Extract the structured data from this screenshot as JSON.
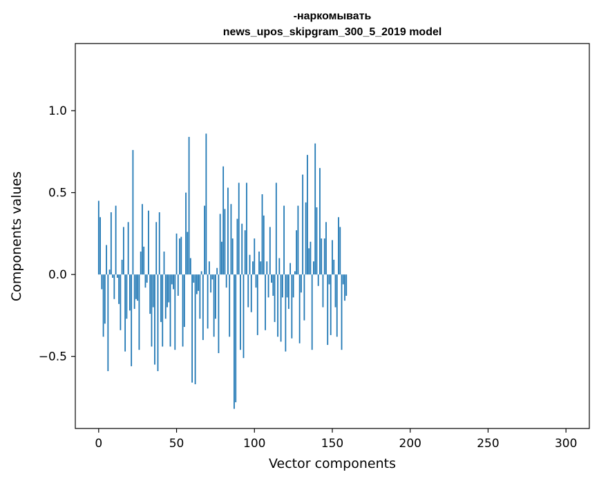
{
  "chart_data": {
    "type": "bar",
    "title_line1": "-наркомывать",
    "title_line2": "news_upos_skipgram_300_5_2019 model",
    "xlabel": "Vector components",
    "ylabel": "Components values",
    "xlim": [
      -15,
      315
    ],
    "ylim": [
      -0.94,
      1.41
    ],
    "xticks": [
      0,
      50,
      100,
      150,
      200,
      250,
      300
    ],
    "xtick_labels": [
      "0",
      "50",
      "100",
      "150",
      "200",
      "250",
      "300"
    ],
    "yticks": [
      -0.5,
      0.0,
      0.5,
      1.0
    ],
    "ytick_labels": [
      "−0.5",
      "0.0",
      "0.5",
      "1.0"
    ],
    "bar_color": "#1f77b4",
    "grid": false,
    "values": [
      0.45,
      0.35,
      -0.09,
      -0.38,
      -0.3,
      0.18,
      -0.59,
      0.03,
      0.38,
      -0.02,
      -0.15,
      0.42,
      -0.02,
      -0.18,
      -0.34,
      0.09,
      0.29,
      -0.47,
      -0.27,
      0.32,
      -0.22,
      -0.56,
      0.76,
      -0.21,
      -0.15,
      -0.16,
      -0.46,
      0.14,
      0.43,
      0.17,
      -0.08,
      -0.05,
      0.39,
      -0.24,
      -0.44,
      -0.2,
      -0.55,
      0.32,
      -0.59,
      0.38,
      -0.29,
      -0.44,
      0.14,
      -0.27,
      -0.2,
      -0.17,
      -0.44,
      -0.06,
      -0.09,
      -0.46,
      0.25,
      -0.13,
      0.22,
      0.23,
      -0.44,
      -0.32,
      0.5,
      0.26,
      0.84,
      0.1,
      -0.66,
      -0.05,
      -0.67,
      -0.12,
      -0.1,
      -0.27,
      0.02,
      -0.4,
      0.42,
      0.86,
      -0.33,
      0.08,
      -0.11,
      -0.03,
      -0.38,
      -0.27,
      0.04,
      -0.48,
      0.37,
      0.2,
      0.66,
      0.4,
      -0.08,
      0.53,
      -0.38,
      0.43,
      0.22,
      -0.82,
      -0.78,
      0.34,
      0.56,
      -0.46,
      0.31,
      -0.51,
      0.27,
      0.56,
      -0.2,
      0.12,
      -0.23,
      0.08,
      0.22,
      -0.08,
      -0.37,
      0.14,
      0.08,
      0.49,
      0.36,
      -0.34,
      0.08,
      -0.14,
      0.29,
      -0.05,
      -0.13,
      -0.29,
      0.56,
      -0.38,
      0.1,
      -0.41,
      -0.14,
      0.42,
      -0.47,
      -0.14,
      -0.21,
      0.07,
      -0.39,
      -0.14,
      0.02,
      0.27,
      0.42,
      -0.42,
      -0.11,
      0.61,
      -0.28,
      0.44,
      0.73,
      0.16,
      0.2,
      -0.46,
      0.08,
      0.8,
      0.41,
      -0.07,
      0.65,
      0.22,
      -0.2,
      0.22,
      0.32,
      -0.43,
      -0.06,
      -0.37,
      0.21,
      0.09,
      -0.2,
      -0.38,
      0.35,
      0.29,
      -0.46,
      -0.06,
      -0.16,
      -0.13
    ]
  }
}
